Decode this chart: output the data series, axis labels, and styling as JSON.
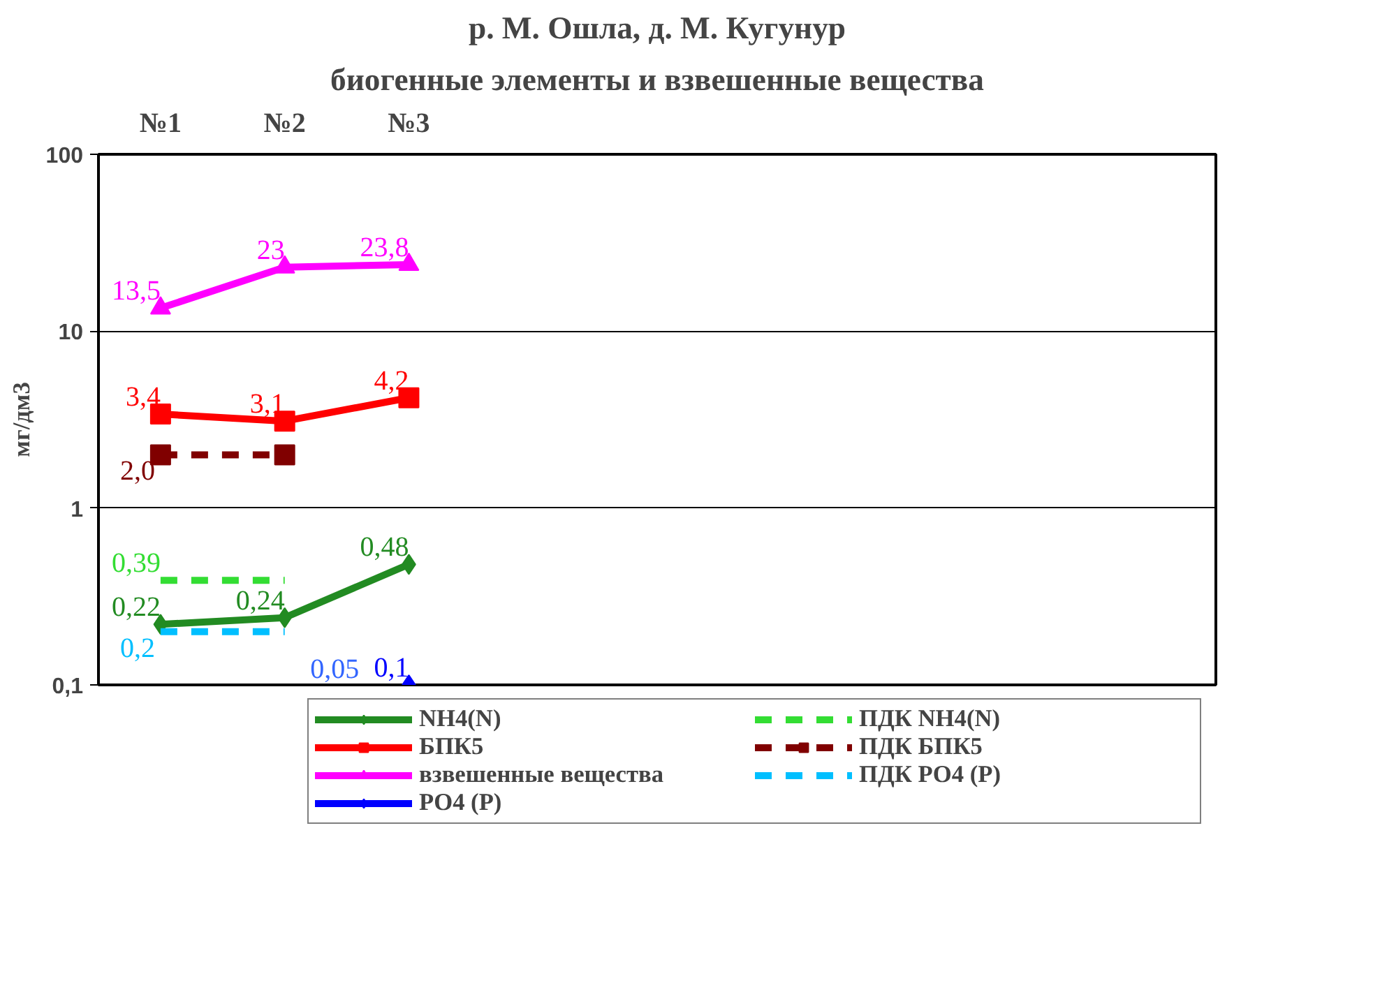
{
  "chart_data": {
    "type": "line",
    "title": "р. М. Ошла, д. М. Кугунур",
    "subtitle": "биогенные элементы и взвешенные вещества",
    "ylabel": "мг/дм3",
    "categories": [
      "№1",
      "№2",
      "№3",
      null,
      null,
      null,
      null,
      null,
      null
    ],
    "log": "y",
    "ylim": [
      0.1,
      100
    ],
    "yticks": [
      {
        "value": 0.1,
        "label": "0,1"
      },
      1,
      10,
      100
    ],
    "grid": "y",
    "legend": "bottom",
    "annotations": [
      "0,05"
    ],
    "series": [
      {
        "name": "NH4(N)",
        "color": "#228b22",
        "values": [
          0.22,
          0.24,
          0.48,
          null,
          null,
          null,
          null,
          null,
          null
        ],
        "marker": "diamond",
        "value_labels": [
          "0,22",
          "0,24",
          "0,48",
          null,
          null,
          null,
          null,
          null,
          null
        ]
      },
      {
        "name": "БПК5",
        "color": "#ff0000",
        "values": [
          3.4,
          3.1,
          4.2,
          null,
          null,
          null,
          null,
          null,
          null
        ],
        "marker": "square",
        "value_labels": [
          "3,4",
          "3,1",
          "4,2",
          null,
          null,
          null,
          null,
          null,
          null
        ]
      },
      {
        "name": "взвешенные вещества",
        "color": "#ff00ff",
        "values": [
          13.5,
          23,
          23.8,
          null,
          null,
          null,
          null,
          null,
          null
        ],
        "marker": "triangle",
        "value_labels": [
          "13,5",
          "23",
          "23,8",
          null,
          null,
          null,
          null,
          null,
          null
        ]
      },
      {
        "name": "PO4 (P)",
        "color": "#0000ff",
        "values": [
          null,
          null,
          0.1,
          null,
          null,
          null,
          null,
          null,
          null
        ],
        "marker": "diamond",
        "value_labels": [
          null,
          null,
          "0,1",
          null,
          null,
          null,
          null,
          null,
          null
        ]
      },
      {
        "name": "ПДК NH4(N)",
        "color": "#33dd33",
        "values": [
          0.39,
          0.39,
          null,
          null,
          null,
          null,
          null,
          null,
          null
        ],
        "marker": "none",
        "line_style": "dashed",
        "value_labels": [
          "0,39",
          null,
          null,
          null,
          null,
          null,
          null,
          null,
          null
        ]
      },
      {
        "name": "ПДК БПК5",
        "color": "#800000",
        "values": [
          2.0,
          2.0,
          null,
          null,
          null,
          null,
          null,
          null,
          null
        ],
        "marker": "square",
        "line_style": "dashed",
        "value_labels": [
          "2,0",
          null,
          null,
          null,
          null,
          null,
          null,
          null,
          null
        ]
      },
      {
        "name": "ПДК PO4 (P)",
        "color": "#00bfff",
        "values": [
          0.2,
          0.2,
          null,
          null,
          null,
          null,
          null,
          null,
          null
        ],
        "marker": "none",
        "line_style": "dashed",
        "value_labels": [
          "0,2",
          null,
          null,
          null,
          null,
          null,
          null,
          null,
          null
        ]
      }
    ]
  }
}
